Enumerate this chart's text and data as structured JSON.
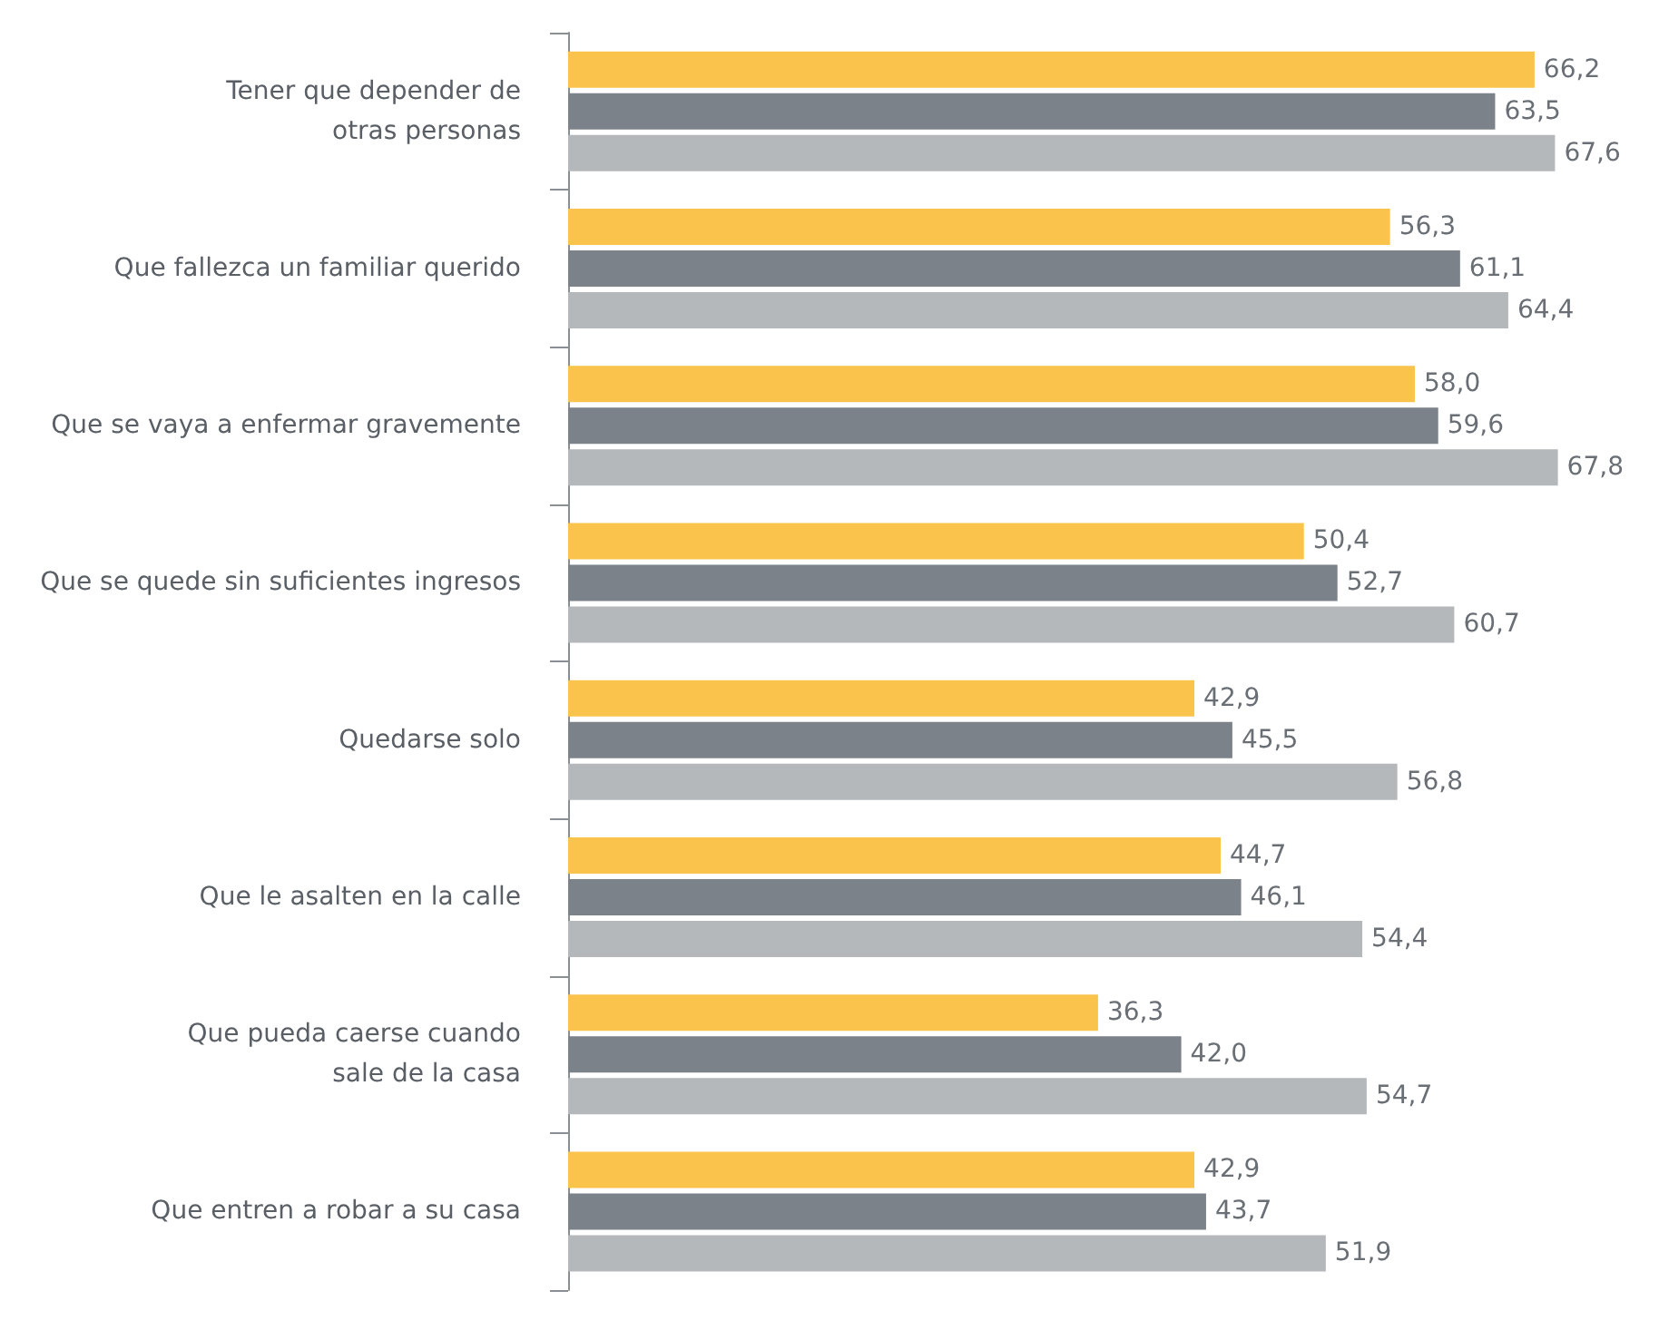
{
  "chart_data": {
    "type": "bar",
    "orientation": "horizontal",
    "categories": [
      "Tener que depender de\notras personas",
      "Que fallezca un familiar querido",
      "Que se vaya a enfermar gravemente",
      "Que se quede sin suficientes ingresos",
      "Quedarse solo",
      "Que le asalten en la calle",
      "Que pueda caerse cuando\nsale de la casa",
      "Que entren a robar a su casa"
    ],
    "series": [
      {
        "color": "#f9c34c",
        "values": [
          66.2,
          56.3,
          58.0,
          50.4,
          42.9,
          44.7,
          36.3,
          42.9
        ],
        "value_labels": [
          "66,2",
          "56,3",
          "58,0",
          "50,4",
          "42,9",
          "44,7",
          "36,3",
          "42,9"
        ]
      },
      {
        "color": "#7b8289",
        "values": [
          63.5,
          61.1,
          59.6,
          52.7,
          45.5,
          46.1,
          42.0,
          43.7
        ],
        "value_labels": [
          "63,5",
          "61,1",
          "59,6",
          "52,7",
          "45,5",
          "46,1",
          "42,0",
          "43,7"
        ]
      },
      {
        "color": "#b5b8bb",
        "values": [
          67.6,
          64.4,
          67.8,
          60.7,
          56.8,
          54.4,
          54.7,
          51.9
        ],
        "value_labels": [
          "67,6",
          "64,4",
          "67,8",
          "60,7",
          "56,8",
          "54,4",
          "54,7",
          "51,9"
        ]
      }
    ],
    "tick_labels": "y"
  }
}
